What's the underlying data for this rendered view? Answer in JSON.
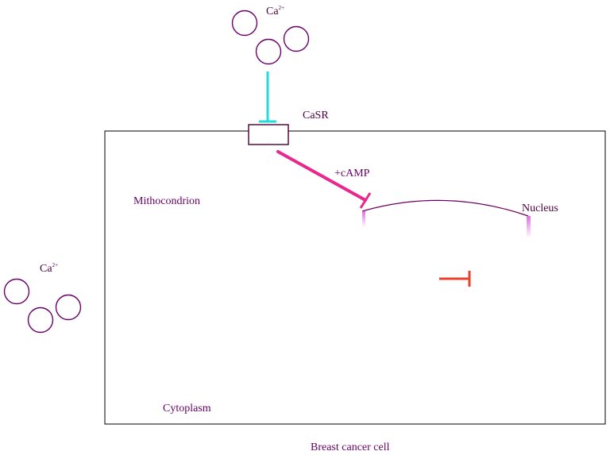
{
  "diagram": {
    "labels": {
      "ca_top_base": "Ca",
      "ca_top_sup": "2+",
      "casr": "CaSR",
      "camp": "+cAMP",
      "mitochondrion": "Mithocondrion",
      "nucleus": "Nucleus",
      "ca_left_base": "Ca",
      "ca_left_sup": "2+",
      "cytoplasm": "Cytoplasm",
      "cell": "Breast cancer cell"
    },
    "colors": {
      "ion_circle": "#6a006a",
      "cell_border": "#000000",
      "receptor_border": "#4a0030",
      "cyan_inhibitor": "#22dddd",
      "magenta_inhibitor": "#e8288c",
      "red_inhibitor": "#e8402a",
      "nucleus_arc": "#6a0060",
      "nucleus_glow": "#e070e0",
      "text": "#660066"
    }
  }
}
